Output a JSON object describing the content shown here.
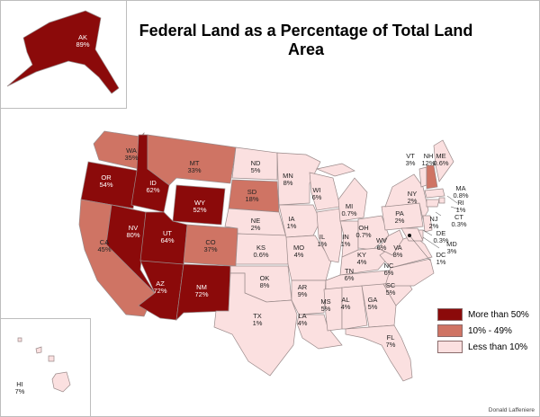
{
  "title": "Federal Land as a Percentage of Total Land Area",
  "credit": "Donald Laffeniere",
  "colors": {
    "high": "#8b0a0a",
    "mid": "#cf7464",
    "low": "#fbe0e0",
    "border": "#9a8a8a"
  },
  "legend": [
    {
      "label": "More than 50%",
      "category": "high"
    },
    {
      "label": "10% - 49%",
      "category": "mid"
    },
    {
      "label": "Less than 10%",
      "category": "low"
    }
  ],
  "states": [
    {
      "abbr": "AK",
      "pct": "89%",
      "cat": "high"
    },
    {
      "abbr": "HI",
      "pct": "7%",
      "cat": "low"
    },
    {
      "abbr": "WA",
      "pct": "35%",
      "cat": "mid"
    },
    {
      "abbr": "OR",
      "pct": "54%",
      "cat": "high"
    },
    {
      "abbr": "CA",
      "pct": "45%",
      "cat": "mid"
    },
    {
      "abbr": "ID",
      "pct": "62%",
      "cat": "high"
    },
    {
      "abbr": "NV",
      "pct": "80%",
      "cat": "high"
    },
    {
      "abbr": "MT",
      "pct": "33%",
      "cat": "mid"
    },
    {
      "abbr": "WY",
      "pct": "52%",
      "cat": "high"
    },
    {
      "abbr": "UT",
      "pct": "64%",
      "cat": "high"
    },
    {
      "abbr": "CO",
      "pct": "37%",
      "cat": "mid"
    },
    {
      "abbr": "AZ",
      "pct": "72%",
      "cat": "high"
    },
    {
      "abbr": "NM",
      "pct": "72%",
      "cat": "high"
    },
    {
      "abbr": "ND",
      "pct": "5%",
      "cat": "low"
    },
    {
      "abbr": "SD",
      "pct": "18%",
      "cat": "mid"
    },
    {
      "abbr": "NE",
      "pct": "2%",
      "cat": "low"
    },
    {
      "abbr": "KS",
      "pct": "0.6%",
      "cat": "low"
    },
    {
      "abbr": "OK",
      "pct": "8%",
      "cat": "low"
    },
    {
      "abbr": "TX",
      "pct": "1%",
      "cat": "low"
    },
    {
      "abbr": "MN",
      "pct": "8%",
      "cat": "low"
    },
    {
      "abbr": "IA",
      "pct": "1%",
      "cat": "low"
    },
    {
      "abbr": "MO",
      "pct": "4%",
      "cat": "low"
    },
    {
      "abbr": "AR",
      "pct": "9%",
      "cat": "low"
    },
    {
      "abbr": "LA",
      "pct": "4%",
      "cat": "low"
    },
    {
      "abbr": "WI",
      "pct": "6%",
      "cat": "low"
    },
    {
      "abbr": "IL",
      "pct": "1%",
      "cat": "low"
    },
    {
      "abbr": "MI",
      "pct": "0.7%",
      "cat": "low"
    },
    {
      "abbr": "IN",
      "pct": "1%",
      "cat": "low"
    },
    {
      "abbr": "OH",
      "pct": "0.7%",
      "cat": "low"
    },
    {
      "abbr": "KY",
      "pct": "4%",
      "cat": "low"
    },
    {
      "abbr": "TN",
      "pct": "6%",
      "cat": "low"
    },
    {
      "abbr": "MS",
      "pct": "5%",
      "cat": "low"
    },
    {
      "abbr": "AL",
      "pct": "4%",
      "cat": "low"
    },
    {
      "abbr": "GA",
      "pct": "5%",
      "cat": "low"
    },
    {
      "abbr": "FL",
      "pct": "7%",
      "cat": "low"
    },
    {
      "abbr": "SC",
      "pct": "5%",
      "cat": "low"
    },
    {
      "abbr": "NC",
      "pct": "6%",
      "cat": "low"
    },
    {
      "abbr": "VA",
      "pct": "8%",
      "cat": "low"
    },
    {
      "abbr": "WV",
      "pct": "6%",
      "cat": "low"
    },
    {
      "abbr": "PA",
      "pct": "2%",
      "cat": "low"
    },
    {
      "abbr": "NY",
      "pct": "2%",
      "cat": "low"
    },
    {
      "abbr": "VT",
      "pct": "3%",
      "cat": "low"
    },
    {
      "abbr": "NH",
      "pct": "12%",
      "cat": "mid"
    },
    {
      "abbr": "ME",
      "pct": "0.6%",
      "cat": "low"
    },
    {
      "abbr": "MA",
      "pct": "0.8%",
      "cat": "low"
    },
    {
      "abbr": "RI",
      "pct": "1%",
      "cat": "low"
    },
    {
      "abbr": "CT",
      "pct": "0.3%",
      "cat": "low"
    },
    {
      "abbr": "NJ",
      "pct": "2%",
      "cat": "low"
    },
    {
      "abbr": "DE",
      "pct": "0.3%",
      "cat": "low"
    },
    {
      "abbr": "MD",
      "pct": "3%",
      "cat": "low"
    },
    {
      "abbr": "DC",
      "pct": "1%",
      "cat": "low"
    }
  ]
}
